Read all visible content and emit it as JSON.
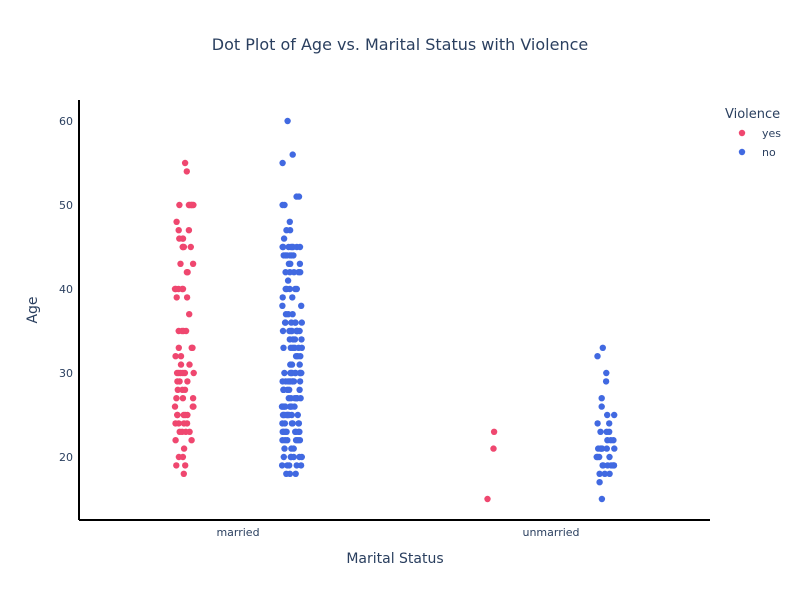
{
  "chart_data": {
    "type": "scatter",
    "subtype": "strip",
    "title": "Dot Plot of Age vs. Marital Status with Violence",
    "xlabel": "Marital Status",
    "ylabel": "Age",
    "categories": [
      "married",
      "unmarried"
    ],
    "y_ticks": [
      20,
      30,
      40,
      50,
      60
    ],
    "ylim": [
      12.5,
      62.5
    ],
    "grid": false,
    "legend": {
      "title": "Violence",
      "position": "top-right"
    },
    "series": [
      {
        "name": "yes",
        "color": "#EF476F",
        "points": {
          "married": [
            18,
            19,
            19,
            20,
            20,
            21,
            22,
            22,
            23,
            23,
            23,
            23,
            24,
            24,
            24,
            24,
            25,
            25,
            25,
            25,
            25,
            26,
            26,
            26,
            27,
            27,
            27,
            28,
            28,
            28,
            29,
            29,
            29,
            30,
            30,
            30,
            30,
            30,
            30,
            31,
            31,
            32,
            32,
            33,
            33,
            33,
            35,
            35,
            35,
            35,
            37,
            39,
            39,
            40,
            40,
            40,
            40,
            40,
            42,
            42,
            43,
            43,
            45,
            45,
            45,
            45,
            46,
            46,
            46,
            47,
            47,
            48,
            50,
            50,
            50,
            50,
            50,
            50,
            50,
            54,
            55
          ],
          "unmarried": [
            15,
            21,
            23
          ]
        }
      },
      {
        "name": "no",
        "color": "#4169E1",
        "points": {
          "married": [
            18,
            18,
            18,
            19,
            19,
            19,
            19,
            19,
            20,
            20,
            20,
            20,
            20,
            20,
            21,
            21,
            21,
            22,
            22,
            22,
            22,
            22,
            22,
            23,
            23,
            23,
            23,
            23,
            23,
            23,
            23,
            24,
            24,
            24,
            24,
            24,
            24,
            25,
            25,
            25,
            25,
            25,
            25,
            25,
            25,
            25,
            26,
            26,
            26,
            26,
            26,
            26,
            26,
            26,
            26,
            27,
            27,
            27,
            27,
            27,
            27,
            27,
            28,
            28,
            28,
            28,
            28,
            28,
            29,
            29,
            29,
            29,
            29,
            29,
            29,
            29,
            29,
            30,
            30,
            30,
            30,
            30,
            30,
            30,
            30,
            30,
            31,
            31,
            31,
            32,
            32,
            32,
            33,
            33,
            33,
            33,
            33,
            33,
            34,
            34,
            34,
            34,
            35,
            35,
            35,
            35,
            35,
            35,
            35,
            35,
            36,
            36,
            36,
            36,
            36,
            36,
            37,
            37,
            37,
            38,
            38,
            39,
            39,
            40,
            40,
            40,
            40,
            40,
            41,
            42,
            42,
            42,
            42,
            42,
            43,
            43,
            43,
            44,
            44,
            44,
            44,
            44,
            44,
            45,
            45,
            45,
            45,
            45,
            45,
            45,
            45,
            46,
            47,
            47,
            48,
            50,
            50,
            51,
            51,
            55,
            56,
            60
          ],
          "unmarried": [
            15,
            17,
            18,
            18,
            18,
            19,
            19,
            19,
            19,
            19,
            19,
            19,
            20,
            20,
            20,
            20,
            21,
            21,
            21,
            21,
            21,
            21,
            22,
            22,
            22,
            23,
            23,
            23,
            24,
            24,
            25,
            25,
            26,
            27,
            29,
            30,
            32,
            33
          ]
        }
      }
    ]
  }
}
